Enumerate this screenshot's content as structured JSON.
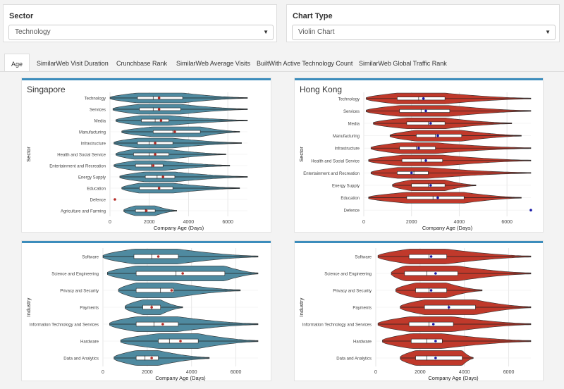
{
  "filters": {
    "sector": {
      "label": "Sector",
      "value": "Technology"
    },
    "chart_type": {
      "label": "Chart Type",
      "value": "Violin Chart"
    }
  },
  "tabs": [
    {
      "label": "Age",
      "active": true
    },
    {
      "label": "SimilarWeb Visit Duration",
      "active": false
    },
    {
      "label": "Crunchbase Rank",
      "active": false
    },
    {
      "label": "SimilarWeb Average Visits",
      "active": false
    },
    {
      "label": "BuiltWith Active Technology Count",
      "active": false
    },
    {
      "label": "SimilarWeb Global Traffic Rank",
      "active": false
    }
  ],
  "panels": {
    "singapore": {
      "title": "Singapore"
    },
    "hong_kong": {
      "title": "Hong Kong"
    }
  },
  "colors": {
    "singapore_fill": "#4f8aa0",
    "hong_kong_fill": "#c0392b",
    "singapore_mean": "#b52a25",
    "hong_kong_mean": "#1a1aa8",
    "accent": "#3c8dbc"
  },
  "chart_data": [
    {
      "id": "sg_sector",
      "type": "violin",
      "panel": "singapore",
      "fill": "singapore_fill",
      "mean_color": "singapore_mean",
      "xlabel": "Company Age (Days)",
      "ylabel": "Sector",
      "xlim": [
        0,
        7000
      ],
      "xticks": [
        0,
        2000,
        4000,
        6000
      ],
      "grid": true,
      "categories": [
        {
          "name": "Technology",
          "min": 0,
          "q1": 1400,
          "median": 2200,
          "q3": 3700,
          "max": 7000,
          "mean": 2500
        },
        {
          "name": "Services",
          "min": 150,
          "q1": 1500,
          "median": 2200,
          "q3": 3600,
          "max": 7000,
          "mean": 2500
        },
        {
          "name": "Media",
          "min": 300,
          "q1": 1600,
          "median": 2300,
          "q3": 3000,
          "max": 7000,
          "mean": 2600
        },
        {
          "name": "Manufacturing",
          "min": 600,
          "q1": 2200,
          "median": 3200,
          "q3": 4600,
          "max": 6600,
          "mean": 3300
        },
        {
          "name": "Infrastructure",
          "min": 200,
          "q1": 1400,
          "median": 2000,
          "q3": 3200,
          "max": 6700,
          "mean": 2300
        },
        {
          "name": "Health and Social Service",
          "min": 300,
          "q1": 1200,
          "median": 2000,
          "q3": 3000,
          "max": 5900,
          "mean": 2300
        },
        {
          "name": "Entertainment and Recreation",
          "min": 200,
          "q1": 1300,
          "median": 2100,
          "q3": 2700,
          "max": 6100,
          "mean": 2200
        },
        {
          "name": "Energy Supply",
          "min": 500,
          "q1": 1800,
          "median": 2400,
          "q3": 3300,
          "max": 7000,
          "mean": 2700
        },
        {
          "name": "Education",
          "min": 600,
          "q1": 1500,
          "median": 2500,
          "q3": 3200,
          "max": 6600,
          "mean": 2500
        },
        {
          "name": "Defence",
          "min": 250,
          "q1": 250,
          "median": 250,
          "q3": 250,
          "max": 250,
          "mean": 250
        },
        {
          "name": "Agriculture and Farming",
          "min": 700,
          "q1": 1300,
          "median": 1800,
          "q3": 2300,
          "max": 3400,
          "mean": 1850
        }
      ]
    },
    {
      "id": "hk_sector",
      "type": "violin",
      "panel": "hong_kong",
      "fill": "hong_kong_fill",
      "mean_color": "hong_kong_mean",
      "xlabel": "Company Age (Days)",
      "ylabel": "Sector",
      "xlim": [
        0,
        7000
      ],
      "xticks": [
        0,
        2000,
        4000,
        6000
      ],
      "grid": true,
      "categories": [
        {
          "name": "Technology",
          "min": 100,
          "q1": 1400,
          "median": 2300,
          "q3": 3400,
          "max": 7000,
          "mean": 2500
        },
        {
          "name": "Services",
          "min": 100,
          "q1": 1500,
          "median": 2400,
          "q3": 3600,
          "max": 7000,
          "mean": 2600
        },
        {
          "name": "Media",
          "min": 400,
          "q1": 1800,
          "median": 2700,
          "q3": 3400,
          "max": 6200,
          "mean": 2800
        },
        {
          "name": "Manufacturing",
          "min": 1100,
          "q1": 2200,
          "median": 3000,
          "q3": 4100,
          "max": 6600,
          "mean": 3100
        },
        {
          "name": "Infrastructure",
          "min": 300,
          "q1": 1500,
          "median": 2200,
          "q3": 3000,
          "max": 7000,
          "mean": 2300
        },
        {
          "name": "Health and Social Service",
          "min": 200,
          "q1": 1600,
          "median": 2400,
          "q3": 3300,
          "max": 7000,
          "mean": 2600
        },
        {
          "name": "Entertainment and Recreation",
          "min": 300,
          "q1": 1400,
          "median": 2100,
          "q3": 2700,
          "max": 7000,
          "mean": 2000
        },
        {
          "name": "Energy Supply",
          "min": 1200,
          "q1": 2000,
          "median": 2700,
          "q3": 3400,
          "max": 4700,
          "mean": 2800
        },
        {
          "name": "Education",
          "min": 200,
          "q1": 1800,
          "median": 2900,
          "q3": 4200,
          "max": 6600,
          "mean": 3100
        },
        {
          "name": "Defence",
          "min": 7000,
          "q1": 7000,
          "median": 7000,
          "q3": 7000,
          "max": 7000,
          "mean": 7000
        }
      ]
    },
    {
      "id": "sg_industry",
      "type": "violin",
      "panel": "singapore",
      "fill": "singapore_fill",
      "mean_color": "singapore_mean",
      "xlabel": "Company Age (Days)",
      "ylabel": "Industry",
      "xlim": [
        0,
        7000
      ],
      "xticks": [
        0,
        2000,
        4000,
        6000
      ],
      "grid": true,
      "categories": [
        {
          "name": "Software",
          "min": 0,
          "q1": 1400,
          "median": 2200,
          "q3": 3400,
          "max": 7000,
          "mean": 2500
        },
        {
          "name": "Science and Engineering",
          "min": 200,
          "q1": 1500,
          "median": 3300,
          "q3": 5500,
          "max": 7000,
          "mean": 3600
        },
        {
          "name": "Privacy and Security",
          "min": 700,
          "q1": 1500,
          "median": 2600,
          "q3": 3200,
          "max": 6200,
          "mean": 3100
        },
        {
          "name": "Payments",
          "min": 1000,
          "q1": 1800,
          "median": 2200,
          "q3": 2600,
          "max": 3600,
          "mean": 2200
        },
        {
          "name": "Information Technology and Services",
          "min": 300,
          "q1": 1500,
          "median": 2300,
          "q3": 3400,
          "max": 7000,
          "mean": 2700
        },
        {
          "name": "Hardware",
          "min": 800,
          "q1": 2500,
          "median": 3000,
          "q3": 4300,
          "max": 7000,
          "mean": 3500
        },
        {
          "name": "Data and Analytics",
          "min": 500,
          "q1": 1500,
          "median": 1900,
          "q3": 2500,
          "max": 4800,
          "mean": 2200
        }
      ]
    },
    {
      "id": "hk_industry",
      "type": "violin",
      "panel": "hong_kong",
      "fill": "hong_kong_fill",
      "mean_color": "hong_kong_mean",
      "xlabel": "Company Age (Days)",
      "ylabel": "Industry",
      "xlim": [
        0,
        7000
      ],
      "xticks": [
        0,
        2000,
        4000,
        6000
      ],
      "grid": true,
      "categories": [
        {
          "name": "Software",
          "min": 100,
          "q1": 1500,
          "median": 2400,
          "q3": 3200,
          "max": 7000,
          "mean": 2500
        },
        {
          "name": "Science and Engineering",
          "min": 700,
          "q1": 1300,
          "median": 2300,
          "q3": 3700,
          "max": 7000,
          "mean": 2700
        },
        {
          "name": "Privacy and Security",
          "min": 900,
          "q1": 1800,
          "median": 2400,
          "q3": 3200,
          "max": 4800,
          "mean": 2500
        },
        {
          "name": "Payments",
          "min": 1100,
          "q1": 2200,
          "median": 3300,
          "q3": 4500,
          "max": 7000,
          "mean": 3300
        },
        {
          "name": "Information Technology and Services",
          "min": 100,
          "q1": 1500,
          "median": 2400,
          "q3": 3500,
          "max": 7000,
          "mean": 2600
        },
        {
          "name": "Hardware",
          "min": 300,
          "q1": 1600,
          "median": 2300,
          "q3": 3000,
          "max": 7000,
          "mean": 2700
        },
        {
          "name": "Data and Analytics",
          "min": 1100,
          "q1": 1800,
          "median": 2300,
          "q3": 3900,
          "max": 4400,
          "mean": 2700
        }
      ]
    }
  ]
}
